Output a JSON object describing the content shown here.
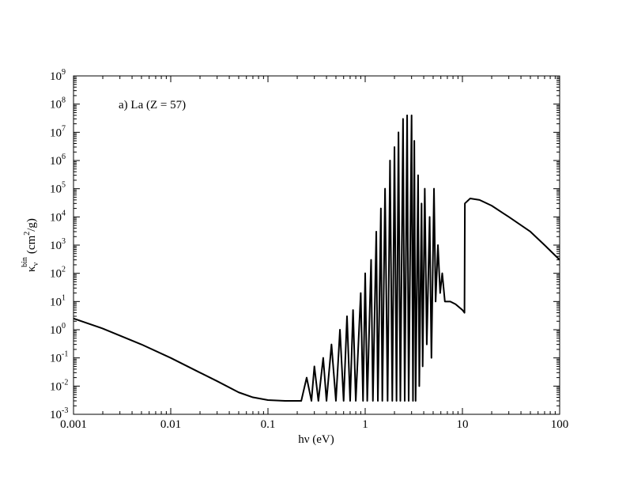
{
  "chart_data": {
    "type": "line",
    "annotation": "a) La (Z = 57)",
    "x_label": "hν (eV)",
    "y_label": {
      "symbol": "κ",
      "subscript": "ν",
      "superscript": "bin",
      "unit_start": "(cm",
      "unit_power": "2",
      "unit_end": "/g)"
    },
    "xscale": "log",
    "yscale": "log",
    "grid": false,
    "minor_ticks": true,
    "xlim": [
      0.001,
      100
    ],
    "ylim": [
      0.001,
      1000000000
    ],
    "xticks": [
      0.001,
      0.01,
      0.1,
      1,
      10,
      100
    ],
    "yticks": [
      {
        "value": 0.001,
        "label": "10",
        "exponent": "-3"
      },
      {
        "value": 0.01,
        "label": "10",
        "exponent": "-2"
      },
      {
        "value": 0.1,
        "label": "10",
        "exponent": "-1"
      },
      {
        "value": 1,
        "label": "10",
        "exponent": "0"
      },
      {
        "value": 10,
        "label": "10",
        "exponent": "1"
      },
      {
        "value": 100,
        "label": "10",
        "exponent": "2"
      },
      {
        "value": 1000,
        "label": "10",
        "exponent": "3"
      },
      {
        "value": 10000,
        "label": "10",
        "exponent": "4"
      },
      {
        "value": 100000,
        "label": "10",
        "exponent": "5"
      },
      {
        "value": 1000000,
        "label": "10",
        "exponent": "6"
      },
      {
        "value": 10000000,
        "label": "10",
        "exponent": "7"
      },
      {
        "value": 100000000,
        "label": "10",
        "exponent": "8"
      },
      {
        "value": 1000000000,
        "label": "10",
        "exponent": "9"
      }
    ],
    "color": "#000000",
    "x": [
      0.001,
      0.002,
      0.005,
      0.01,
      0.02,
      0.03,
      0.05,
      0.07,
      0.1,
      0.15,
      0.2,
      0.22,
      0.25,
      0.28,
      0.3,
      0.33,
      0.37,
      0.4,
      0.45,
      0.5,
      0.55,
      0.6,
      0.65,
      0.7,
      0.75,
      0.8,
      0.9,
      0.95,
      1.0,
      1.05,
      1.15,
      1.2,
      1.3,
      1.35,
      1.45,
      1.5,
      1.6,
      1.7,
      1.8,
      1.9,
      2.0,
      2.1,
      2.2,
      2.3,
      2.45,
      2.55,
      2.7,
      2.8,
      3.0,
      3.1,
      3.2,
      3.3,
      3.5,
      3.6,
      3.8,
      3.9,
      4.1,
      4.3,
      4.6,
      4.8,
      5.1,
      5.3,
      5.6,
      5.9,
      6.2,
      6.6,
      7.5,
      8.5,
      10,
      10.5,
      10.6,
      12,
      15,
      20,
      30,
      50,
      70,
      100
    ],
    "values": [
      2.5,
      1.1,
      0.3,
      0.1,
      0.03,
      0.015,
      0.006,
      0.004,
      0.0032,
      0.003,
      0.003,
      0.003,
      0.02,
      0.003,
      0.05,
      0.003,
      0.1,
      0.003,
      0.3,
      0.003,
      1,
      0.003,
      3,
      0.003,
      5,
      0.003,
      20,
      0.003,
      100,
      0.003,
      300,
      0.003,
      3000,
      0.003,
      20000,
      0.003,
      100000,
      0.003,
      1000000,
      0.003,
      3000000,
      0.003,
      10000000,
      0.003,
      30000000,
      0.003,
      40000000,
      0.003,
      40000000,
      0.003,
      5000000,
      0.003,
      300000,
      0.01,
      30000,
      0.05,
      100000,
      0.3,
      10000,
      0.1,
      100000,
      10,
      1000,
      20,
      100,
      10,
      10,
      8,
      5,
      4,
      30000,
      45000,
      40000,
      25000,
      10000,
      3000,
      1000,
      300
    ]
  }
}
